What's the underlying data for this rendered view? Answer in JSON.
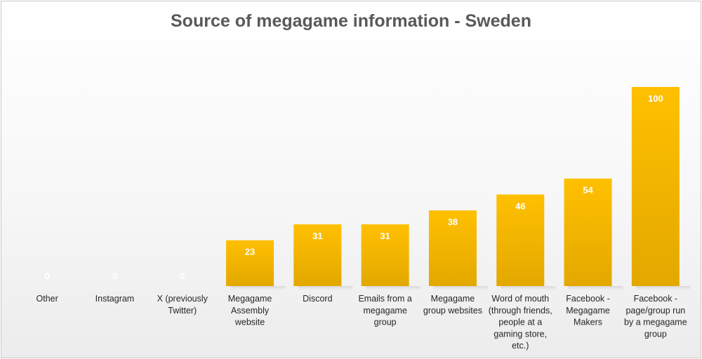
{
  "chart_data": {
    "type": "bar",
    "title": "Source of megagame information - Sweden",
    "categories": [
      [
        "Other"
      ],
      [
        "Instagram"
      ],
      [
        "X (previously",
        "Twitter)"
      ],
      [
        "Megagame",
        "Assembly",
        "website"
      ],
      [
        "Discord"
      ],
      [
        "Emails from a",
        "megagame",
        "group"
      ],
      [
        "Megagame",
        "group websites"
      ],
      [
        "Word of mouth",
        "(through friends,",
        "people at a",
        "gaming store,",
        "etc.)"
      ],
      [
        "Facebook -",
        "Megagame",
        "Makers"
      ],
      [
        "Facebook -",
        "page/group run",
        "by a megagame",
        "group"
      ]
    ],
    "values": [
      0,
      0,
      0,
      23,
      31,
      31,
      38,
      46,
      54,
      100
    ],
    "ylim": [
      0,
      100
    ],
    "xlabel": "",
    "ylabel": "",
    "grid": false,
    "legend": "none",
    "colors": {
      "bar": "#FFC000",
      "bar_dark": "#E3A800"
    }
  }
}
